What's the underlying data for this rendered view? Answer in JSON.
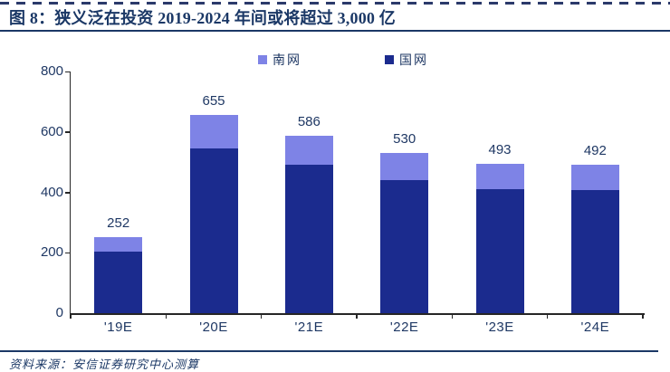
{
  "header": {
    "title": "图 8：狭义泛在投资 2019-2024 年间或将超过 3,000 亿"
  },
  "legend": [
    {
      "label": "南网",
      "color": "#7e83e6"
    },
    {
      "label": "国网",
      "color": "#1b2b8e"
    }
  ],
  "chart_data": {
    "type": "bar",
    "stacked": true,
    "title": "狭义泛在投资 2019-2024 年间或将超过 3,000 亿",
    "categories": [
      "'19E",
      "'20E",
      "'21E",
      "'22E",
      "'23E",
      "'24E"
    ],
    "series": [
      {
        "name": "国网",
        "color": "#1b2b8e",
        "values": [
          205,
          545,
          490,
          440,
          410,
          408
        ]
      },
      {
        "name": "南网",
        "color": "#7e83e6",
        "values": [
          47,
          110,
          96,
          90,
          83,
          84
        ]
      }
    ],
    "totals": [
      252,
      655,
      586,
      530,
      493,
      492
    ],
    "xlabel": "",
    "ylabel": "",
    "ylim": [
      0,
      800
    ],
    "yticks": [
      0,
      200,
      400,
      600,
      800
    ],
    "grid": false,
    "legend_position": "top"
  },
  "footer": {
    "source": "资料来源：安信证券研究中心测算"
  },
  "colors": {
    "text": "#1f3864",
    "title": "#1b3866",
    "axis": "#262626"
  }
}
